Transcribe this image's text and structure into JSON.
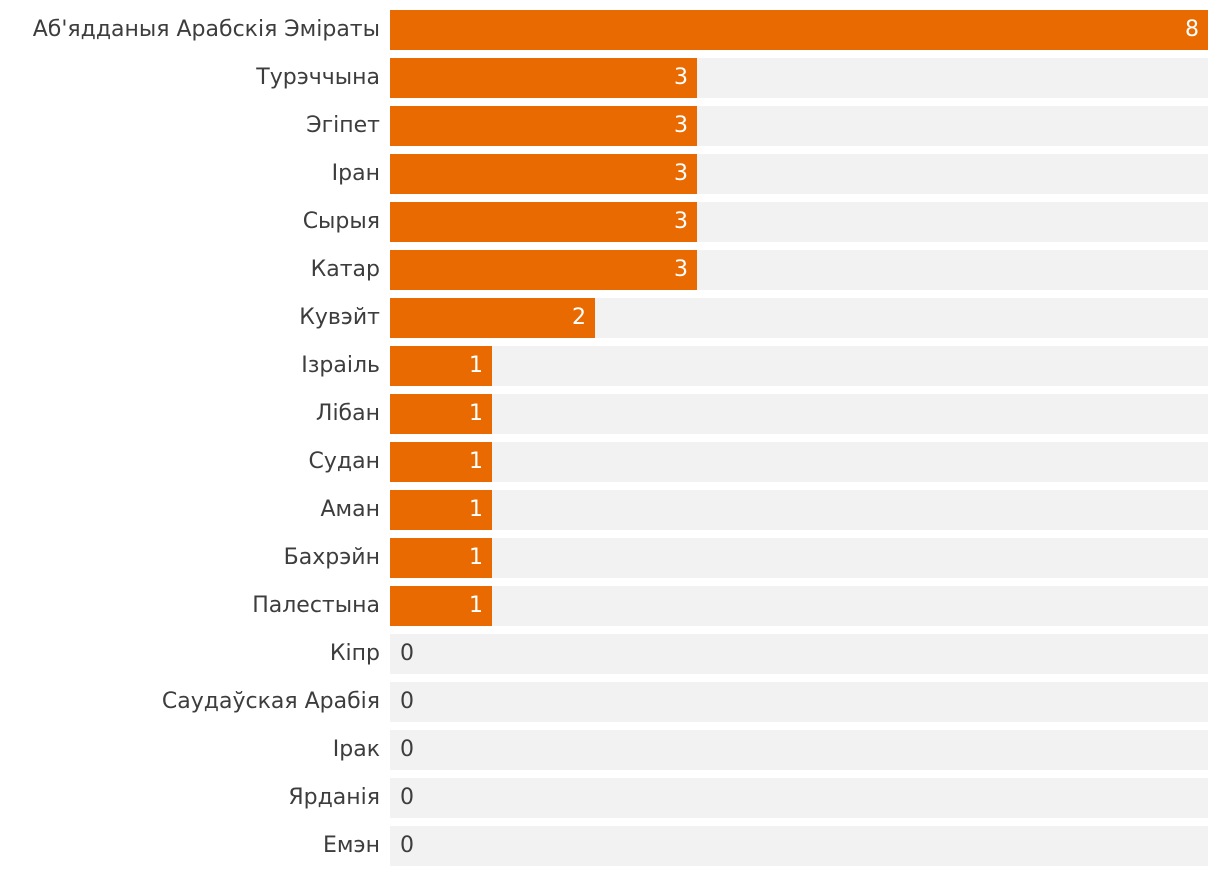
{
  "colors": {
    "bar": "#e86a00",
    "track": "#f2f2f2",
    "label_text": "#3d3d3d",
    "value_inside_text": "#ffffff"
  },
  "chart_data": {
    "type": "bar",
    "orientation": "horizontal",
    "title": "",
    "xlabel": "",
    "ylabel": "",
    "xlim": [
      0,
      8
    ],
    "grid": false,
    "legend": "none",
    "categories": [
      "Аб'ядданыя Арабскія Эміраты",
      "Турэччына",
      "Эгіпет",
      "Іран",
      "Сырыя",
      "Катар",
      "Кувэйт",
      "Ізраіль",
      "Лібан",
      "Судан",
      "Аман",
      "Бахрэйн",
      "Палестына",
      "Кіпр",
      "Саудаўская Арабія",
      "Ірак",
      "Ярданія",
      "Емэн"
    ],
    "values": [
      8,
      3,
      3,
      3,
      3,
      3,
      2,
      1,
      1,
      1,
      1,
      1,
      1,
      0,
      0,
      0,
      0,
      0
    ],
    "value_labels": [
      "8",
      "3",
      "3",
      "3",
      "3",
      "3",
      "2",
      "1",
      "1",
      "1",
      "1",
      "1",
      "1",
      "0",
      "0",
      "0",
      "0",
      "0"
    ]
  }
}
